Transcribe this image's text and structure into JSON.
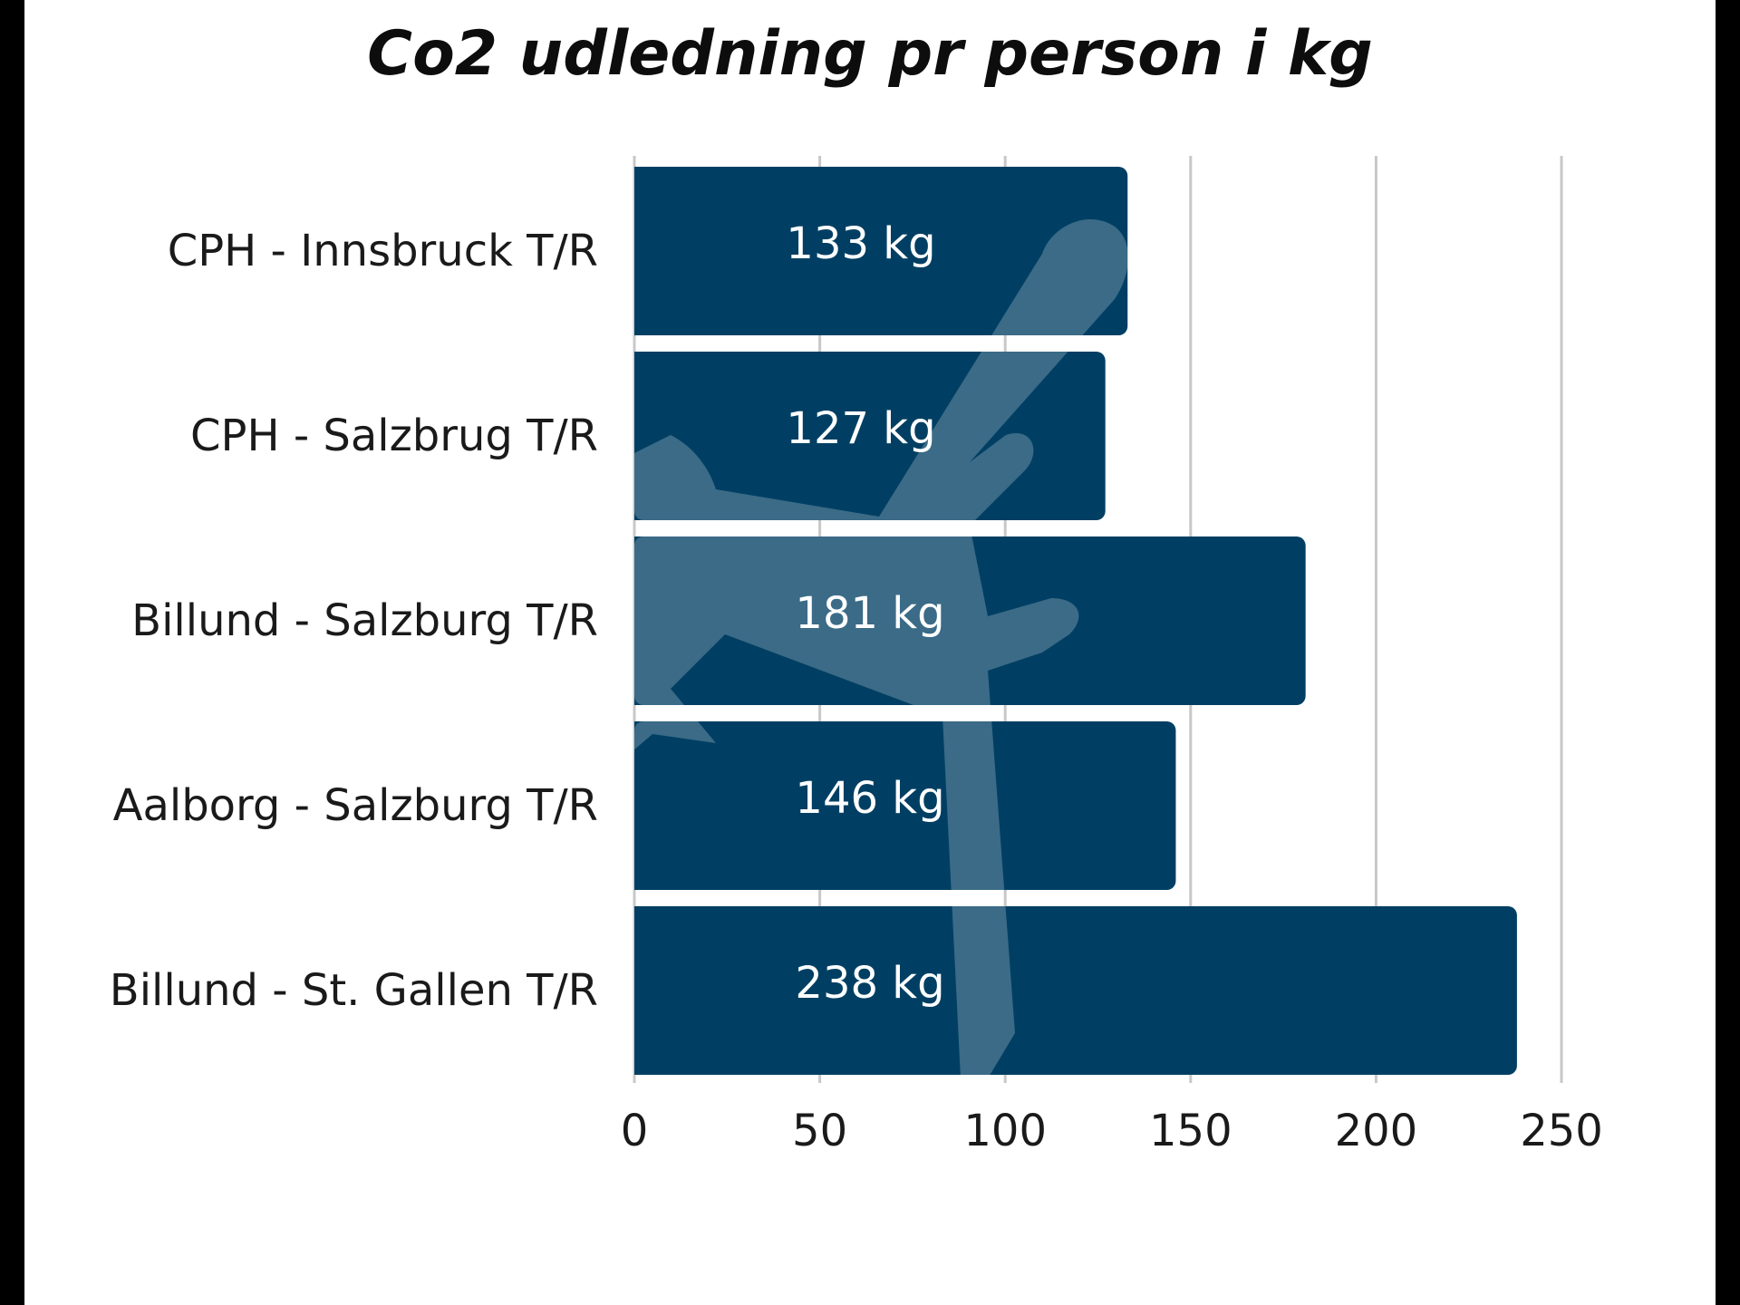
{
  "chart_data": {
    "type": "bar",
    "orientation": "horizontal",
    "title": "Co2 udledning pr person i kg",
    "categories": [
      "CPH - Innsbruck T/R",
      "CPH - Salzbrug T/R",
      "Billund - Salzburg T/R",
      "Aalborg - Salzburg T/R",
      "Billund - St. Gallen T/R"
    ],
    "values": [
      133,
      127,
      181,
      146,
      238
    ],
    "data_labels": [
      "133 kg",
      "127 kg",
      "181 kg",
      "146 kg",
      "238 kg"
    ],
    "xlim": [
      0,
      250
    ],
    "xticks": [
      0,
      50,
      100,
      150,
      200,
      250
    ],
    "xtick_labels": [
      "0",
      "50",
      "100",
      "150",
      "200",
      "250"
    ],
    "grid": "vertical",
    "legend": "none",
    "bar_color": "#003f63",
    "watermark_icon": "airplane-icon"
  }
}
